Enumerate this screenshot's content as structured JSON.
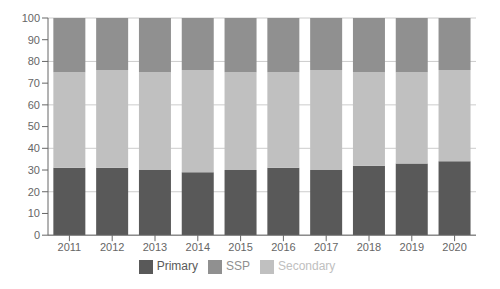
{
  "chart_data": {
    "type": "bar",
    "stacked": true,
    "categories": [
      "2011",
      "2012",
      "2013",
      "2014",
      "2015",
      "2016",
      "2017",
      "2018",
      "2019",
      "2020"
    ],
    "series": [
      {
        "name": "Primary",
        "color": "#595959",
        "values": [
          31,
          31,
          30,
          29,
          30,
          31,
          30,
          32,
          33,
          34
        ]
      },
      {
        "name": "Secondary",
        "color": "#c0c0c0",
        "values": [
          44,
          45,
          45,
          47,
          45,
          44,
          46,
          43,
          42,
          42
        ]
      },
      {
        "name": "SSP",
        "color": "#909090",
        "values": [
          25,
          24,
          25,
          24,
          25,
          25,
          24,
          25,
          25,
          24
        ]
      }
    ],
    "ylim": [
      0,
      100
    ],
    "yticks": [
      0,
      10,
      20,
      30,
      40,
      50,
      60,
      70,
      80,
      90,
      100
    ],
    "grid": true,
    "legend": "bottom"
  }
}
